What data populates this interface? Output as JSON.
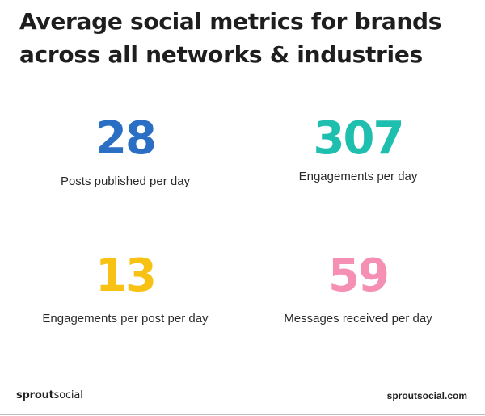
{
  "title": {
    "line1": "Average social metrics for brands",
    "line2": "across all networks & industries"
  },
  "metrics": [
    {
      "value": "28",
      "label": "Posts published per day",
      "color": "#2b6fc4"
    },
    {
      "value": "307",
      "label": "Engagements per day",
      "color": "#1fbfb0"
    },
    {
      "value": "13",
      "label": "Engagements per post per day",
      "color": "#f7c213"
    },
    {
      "value": "59",
      "label": "Messages received per day",
      "color": "#f58fb4"
    }
  ],
  "footer": {
    "brand_bold": "sprout",
    "brand_regular": "social",
    "website": "sproutsocial.com"
  }
}
